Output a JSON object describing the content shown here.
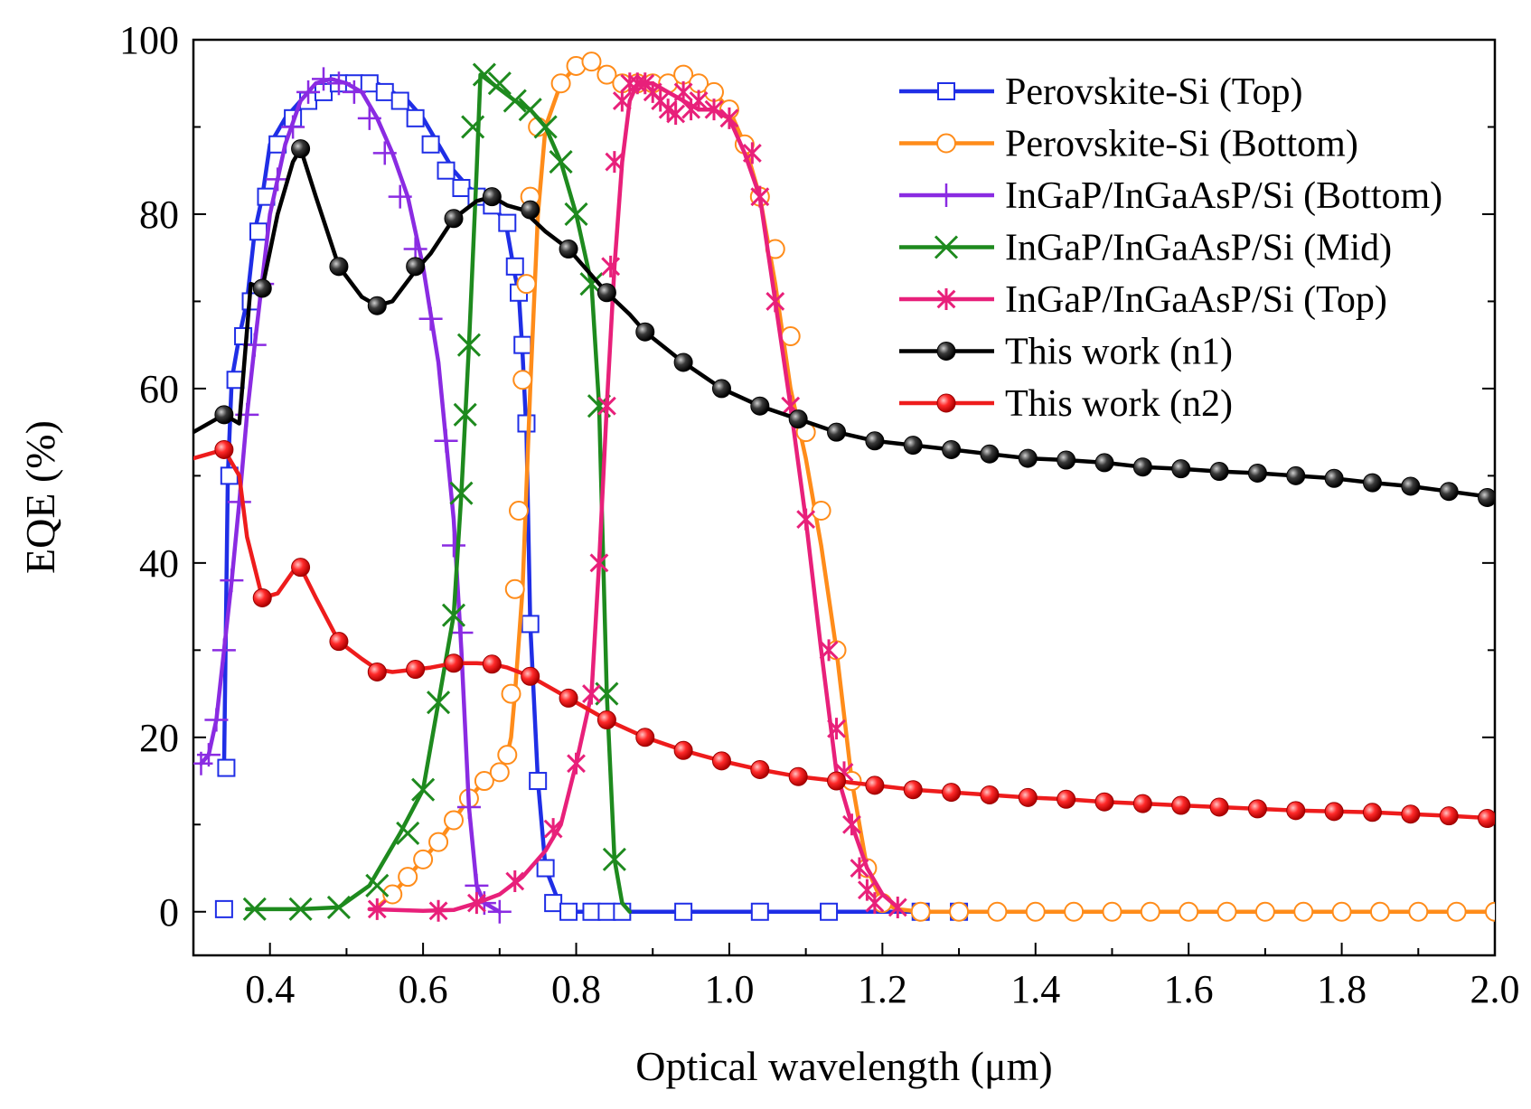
{
  "chart_data": {
    "type": "line",
    "xlabel": "Optical wavelength (μm)",
    "ylabel": "EQE (%)",
    "xlim": [
      0.3,
      2.0
    ],
    "ylim": [
      -5,
      100
    ],
    "xticks": [
      0.4,
      0.6,
      0.8,
      1.0,
      1.2,
      1.4,
      1.6,
      1.8,
      2.0
    ],
    "xtick_labels": [
      "0.4",
      "0.6",
      "0.8",
      "1.0",
      "1.2",
      "1.4",
      "1.6",
      "1.8",
      "2.0"
    ],
    "yticks": [
      0,
      20,
      40,
      60,
      80,
      100
    ],
    "ytick_labels": [
      "0",
      "20",
      "40",
      "60",
      "80",
      "100"
    ],
    "legend_position": "top-right",
    "series": [
      {
        "name": "Perovskite-Si (Top)",
        "color": "#1f2ee6",
        "marker": "square",
        "x": [
          0.34,
          0.345,
          0.35,
          0.36,
          0.37,
          0.38,
          0.39,
          0.4,
          0.42,
          0.44,
          0.46,
          0.48,
          0.5,
          0.52,
          0.54,
          0.56,
          0.58,
          0.6,
          0.62,
          0.64,
          0.66,
          0.68,
          0.7,
          0.71,
          0.72,
          0.725,
          0.73,
          0.735,
          0.74,
          0.75,
          0.76,
          0.78,
          0.8,
          0.85,
          0.9,
          1.0,
          1.1,
          1.2,
          1.25,
          1.3
        ],
        "y": [
          16.5,
          50,
          61,
          66,
          70,
          78,
          82,
          88,
          91,
          93,
          94,
          95,
          95,
          95,
          95,
          94,
          93,
          91,
          88,
          85,
          83,
          82,
          80,
          78,
          73,
          71,
          64,
          55,
          33,
          15,
          5,
          0.5,
          0,
          0,
          0,
          0,
          0,
          0,
          0,
          0
        ],
        "mx": [
          0.34,
          0.343,
          0.347,
          0.355,
          0.365,
          0.375,
          0.385,
          0.395,
          0.41,
          0.43,
          0.45,
          0.47,
          0.49,
          0.51,
          0.53,
          0.55,
          0.57,
          0.59,
          0.61,
          0.63,
          0.65,
          0.67,
          0.69,
          0.71,
          0.72,
          0.725,
          0.73,
          0.735,
          0.74,
          0.75,
          0.76,
          0.77,
          0.79,
          0.82,
          0.84,
          0.86,
          0.94,
          1.04,
          1.13,
          1.25,
          1.3
        ],
        "my": [
          0.3,
          16.5,
          50,
          61,
          66,
          70,
          78,
          82,
          88,
          91,
          93,
          94,
          95,
          95,
          95,
          94,
          93,
          91,
          88,
          85,
          83,
          82,
          81,
          79,
          74,
          71,
          65,
          56,
          33,
          15,
          5,
          1,
          0,
          0,
          0,
          0,
          0,
          0,
          0,
          0,
          0
        ]
      },
      {
        "name": "Perovskite-Si (Bottom)",
        "color": "#ff8c1a",
        "marker": "circle",
        "x": [
          0.54,
          0.56,
          0.58,
          0.6,
          0.62,
          0.64,
          0.66,
          0.68,
          0.7,
          0.71,
          0.715,
          0.72,
          0.73,
          0.74,
          0.75,
          0.76,
          0.78,
          0.8,
          0.82,
          0.84,
          0.86,
          0.88,
          0.9,
          0.92,
          0.94,
          0.96,
          0.98,
          1.0,
          1.02,
          1.04,
          1.06,
          1.08,
          1.1,
          1.12,
          1.14,
          1.16,
          1.18,
          1.2,
          1.22,
          1.25,
          1.3,
          1.4,
          1.5,
          1.6,
          1.7,
          1.8,
          1.9,
          2.0
        ],
        "y": [
          0.5,
          2,
          4,
          6,
          8,
          10.5,
          13,
          15,
          16,
          18,
          20,
          25,
          37,
          60,
          80,
          90,
          95,
          97,
          97.5,
          96,
          95,
          95,
          95,
          95,
          95.5,
          95,
          94,
          92,
          88,
          82,
          72,
          60,
          52,
          42,
          30,
          15,
          5,
          1,
          0.3,
          0,
          0,
          0,
          0,
          0,
          0,
          0,
          0,
          0
        ],
        "mx": [
          0.56,
          0.58,
          0.6,
          0.62,
          0.64,
          0.66,
          0.68,
          0.7,
          0.71,
          0.715,
          0.72,
          0.725,
          0.73,
          0.735,
          0.74,
          0.75,
          0.78,
          0.8,
          0.82,
          0.84,
          0.86,
          0.88,
          0.9,
          0.92,
          0.94,
          0.96,
          0.98,
          1.0,
          1.02,
          1.04,
          1.06,
          1.08,
          1.1,
          1.12,
          1.14,
          1.16,
          1.18,
          1.2,
          1.25,
          1.3,
          1.35,
          1.4,
          1.45,
          1.5,
          1.55,
          1.6,
          1.65,
          1.7,
          1.75,
          1.8,
          1.85,
          1.9,
          1.95,
          2.0
        ],
        "my": [
          2,
          4,
          6,
          8,
          10.5,
          13,
          15,
          16,
          18,
          25,
          37,
          46,
          61,
          72,
          82,
          90,
          95,
          97,
          97.5,
          96,
          95,
          95,
          95,
          95,
          96,
          95,
          94,
          92,
          88,
          82,
          76,
          66,
          55,
          46,
          30,
          15,
          5,
          1,
          0,
          0,
          0,
          0,
          0,
          0,
          0,
          0,
          0,
          0,
          0,
          0,
          0,
          0,
          0,
          0
        ]
      },
      {
        "name": "InGaP/InGaAsP/Si (Bottom)",
        "color": "#8a2be2",
        "marker": "plus",
        "x": [
          0.31,
          0.32,
          0.33,
          0.34,
          0.35,
          0.36,
          0.37,
          0.38,
          0.4,
          0.42,
          0.44,
          0.46,
          0.48,
          0.5,
          0.52,
          0.54,
          0.56,
          0.58,
          0.6,
          0.62,
          0.64,
          0.65,
          0.66,
          0.67,
          0.68,
          0.69,
          0.7
        ],
        "y": [
          17,
          18,
          22,
          30,
          38,
          47,
          57,
          65,
          80,
          88,
          93,
          95,
          95.5,
          95,
          94,
          91,
          87,
          82,
          74,
          63,
          45,
          30,
          12,
          3,
          1,
          0.5,
          0
        ],
        "mx": [
          0.31,
          0.32,
          0.33,
          0.34,
          0.35,
          0.36,
          0.37,
          0.38,
          0.39,
          0.41,
          0.43,
          0.45,
          0.47,
          0.49,
          0.51,
          0.53,
          0.55,
          0.57,
          0.59,
          0.61,
          0.63,
          0.64,
          0.65,
          0.66,
          0.67,
          0.68,
          0.7
        ],
        "my": [
          17,
          18,
          22,
          30,
          38,
          47,
          57,
          65,
          72,
          84,
          90,
          94,
          95.5,
          95,
          94,
          91,
          87,
          82,
          76,
          68,
          54,
          42,
          32,
          12,
          3,
          1,
          0
        ]
      },
      {
        "name": "InGaP/InGaAsP/Si (Mid)",
        "color": "#1e8a1e",
        "marker": "x",
        "x": [
          0.37,
          0.44,
          0.49,
          0.53,
          0.57,
          0.6,
          0.62,
          0.64,
          0.65,
          0.66,
          0.67,
          0.675,
          0.69,
          0.72,
          0.74,
          0.76,
          0.78,
          0.8,
          0.82,
          0.83,
          0.84,
          0.85,
          0.86,
          0.87
        ],
        "y": [
          0.3,
          0.3,
          0.5,
          3,
          9,
          14,
          24,
          34,
          48,
          65,
          85,
          96,
          95,
          93,
          92,
          90,
          86,
          80,
          72,
          58,
          25,
          6,
          1,
          0
        ],
        "mx": [
          0.38,
          0.44,
          0.49,
          0.54,
          0.58,
          0.6,
          0.62,
          0.64,
          0.65,
          0.655,
          0.66,
          0.665,
          0.68,
          0.7,
          0.72,
          0.74,
          0.76,
          0.78,
          0.8,
          0.82,
          0.83,
          0.84,
          0.85
        ],
        "my": [
          0.3,
          0.3,
          0.5,
          3,
          9,
          14,
          24,
          34,
          48,
          57,
          65,
          90,
          96,
          95,
          93,
          92,
          90,
          86,
          80,
          72,
          58,
          25,
          6
        ]
      },
      {
        "name": "InGaP/InGaAsP/Si (Top)",
        "color": "#e8207a",
        "marker": "asterisk",
        "x": [
          0.53,
          0.6,
          0.64,
          0.67,
          0.7,
          0.73,
          0.76,
          0.78,
          0.8,
          0.82,
          0.83,
          0.84,
          0.85,
          0.86,
          0.87,
          0.88,
          0.9,
          0.92,
          0.94,
          0.96,
          0.98,
          1.0,
          1.02,
          1.04,
          1.06,
          1.08,
          1.1,
          1.12,
          1.14,
          1.16,
          1.18,
          1.2,
          1.22
        ],
        "y": [
          0.3,
          0.1,
          0.2,
          1,
          2,
          4,
          7,
          10,
          17,
          25,
          40,
          58,
          74,
          86,
          93,
          95,
          95,
          94,
          93,
          92,
          92,
          91,
          87,
          82,
          70,
          58,
          45,
          30,
          16,
          10,
          5,
          2,
          0.5
        ],
        "mx": [
          0.54,
          0.62,
          0.67,
          0.72,
          0.77,
          0.8,
          0.82,
          0.83,
          0.84,
          0.845,
          0.85,
          0.86,
          0.87,
          0.88,
          0.89,
          0.9,
          0.91,
          0.92,
          0.93,
          0.94,
          0.95,
          0.96,
          0.98,
          1.0,
          1.03,
          1.04,
          1.06,
          1.08,
          1.1,
          1.13,
          1.14,
          1.15,
          1.16,
          1.17,
          1.18,
          1.19,
          1.22
        ],
        "my": [
          0.3,
          0.1,
          1,
          3.5,
          9.5,
          17,
          25,
          40,
          58,
          74,
          86,
          93,
          95,
          95,
          95,
          94,
          93,
          92,
          91.5,
          94,
          92,
          93,
          92,
          91,
          87,
          82,
          70,
          58,
          45,
          30,
          21,
          16,
          10,
          5,
          2.5,
          1,
          0.5
        ]
      },
      {
        "name": "This work (n1)",
        "color": "#000000",
        "marker": "ball",
        "x": [
          0.3,
          0.34,
          0.36,
          0.375,
          0.39,
          0.41,
          0.43,
          0.44,
          0.46,
          0.49,
          0.52,
          0.54,
          0.56,
          0.59,
          0.61,
          0.64,
          0.67,
          0.69,
          0.71,
          0.73,
          0.76,
          0.79,
          0.81,
          0.84,
          0.87,
          0.89,
          0.94,
          0.99,
          1.04,
          1.09,
          1.14,
          1.19,
          1.24,
          1.29,
          1.34,
          1.39,
          1.44,
          1.49,
          1.54,
          1.59,
          1.64,
          1.69,
          1.74,
          1.79,
          1.84,
          1.89,
          1.94,
          2.0
        ],
        "y": [
          55,
          57,
          56,
          72,
          71.5,
          80,
          86,
          87.5,
          82,
          74,
          70.5,
          69.5,
          70,
          73.5,
          75.5,
          79.5,
          81.5,
          82,
          81,
          80.5,
          78,
          76,
          74,
          71,
          68.5,
          66.5,
          63,
          60,
          58,
          56.5,
          55,
          54,
          53.5,
          53,
          52.5,
          52,
          51.8,
          51.5,
          51,
          50.8,
          50.5,
          50.3,
          50,
          49.7,
          49.2,
          48.8,
          48.2,
          47.5
        ],
        "mx": [
          0.34,
          0.39,
          0.44,
          0.49,
          0.54,
          0.59,
          0.64,
          0.69,
          0.74,
          0.79,
          0.84,
          0.89,
          0.94,
          0.99,
          1.04,
          1.09,
          1.14,
          1.19,
          1.24,
          1.29,
          1.34,
          1.39,
          1.44,
          1.49,
          1.54,
          1.59,
          1.64,
          1.69,
          1.74,
          1.79,
          1.84,
          1.89,
          1.94,
          1.99
        ],
        "my": [
          57,
          71.5,
          87.5,
          74,
          69.5,
          74,
          79.5,
          82,
          80.5,
          76,
          71,
          66.5,
          63,
          60,
          58,
          56.5,
          55,
          54,
          53.5,
          53,
          52.5,
          52,
          51.8,
          51.5,
          51,
          50.8,
          50.5,
          50.3,
          50,
          49.7,
          49.2,
          48.8,
          48.2,
          47.5
        ]
      },
      {
        "name": "This work (n2)",
        "color": "#ee1c1c",
        "marker": "ball",
        "x": [
          0.3,
          0.34,
          0.36,
          0.37,
          0.39,
          0.41,
          0.43,
          0.44,
          0.46,
          0.49,
          0.52,
          0.54,
          0.56,
          0.59,
          0.61,
          0.64,
          0.67,
          0.69,
          0.71,
          0.74,
          0.76,
          0.79,
          0.84,
          0.89,
          0.94,
          0.99,
          1.04,
          1.09,
          1.14,
          1.19,
          1.24,
          1.29,
          1.34,
          1.39,
          1.44,
          1.49,
          1.54,
          1.59,
          1.64,
          1.69,
          1.74,
          1.79,
          1.84,
          1.89,
          1.94,
          2.0
        ],
        "y": [
          52,
          53,
          50,
          43,
          36,
          36.5,
          39,
          39.5,
          36,
          31,
          29,
          27.8,
          27.5,
          27.8,
          28,
          28.5,
          28.5,
          28.4,
          28,
          27,
          26,
          24.5,
          22,
          20,
          18.5,
          17.3,
          16.3,
          15.5,
          15,
          14.5,
          14,
          13.7,
          13.4,
          13.1,
          12.9,
          12.6,
          12.4,
          12.2,
          12,
          11.8,
          11.6,
          11.5,
          11.4,
          11.2,
          11,
          10.7
        ],
        "mx": [
          0.34,
          0.39,
          0.44,
          0.49,
          0.54,
          0.59,
          0.64,
          0.69,
          0.74,
          0.79,
          0.84,
          0.89,
          0.94,
          0.99,
          1.04,
          1.09,
          1.14,
          1.19,
          1.24,
          1.29,
          1.34,
          1.39,
          1.44,
          1.49,
          1.54,
          1.59,
          1.64,
          1.69,
          1.74,
          1.79,
          1.84,
          1.89,
          1.94,
          1.99
        ],
        "my": [
          53,
          36,
          39.5,
          31,
          27.5,
          27.8,
          28.5,
          28.4,
          27,
          24.5,
          22,
          20,
          18.5,
          17.3,
          16.3,
          15.5,
          15,
          14.5,
          14,
          13.7,
          13.4,
          13.1,
          12.9,
          12.6,
          12.4,
          12.2,
          12,
          11.8,
          11.6,
          11.5,
          11.4,
          11.2,
          11,
          10.7
        ]
      }
    ]
  }
}
